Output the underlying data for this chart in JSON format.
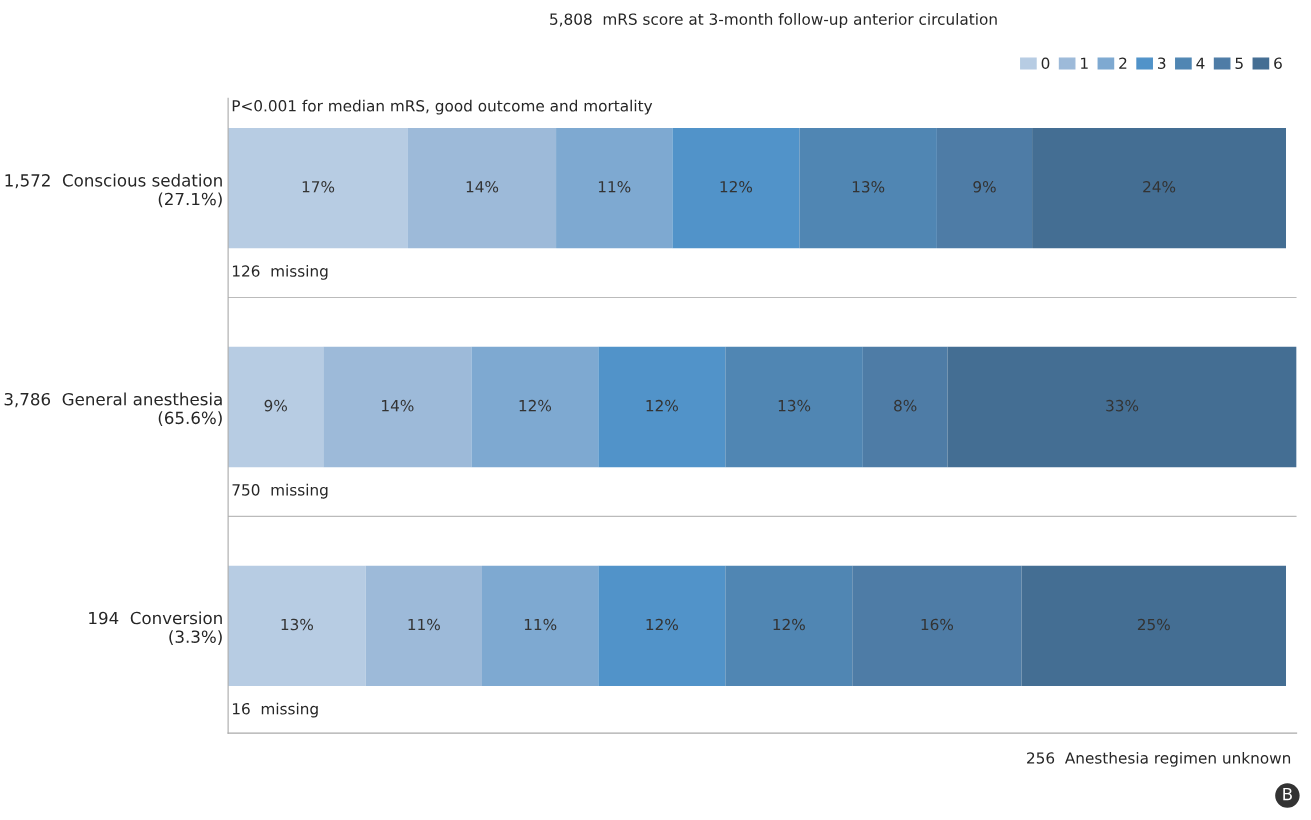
{
  "chart_data": {
    "type": "bar",
    "orientation": "horizontal",
    "stacked": true,
    "title": "5,808  mRS score at 3-month follow-up anterior circulation",
    "categories": [
      "1,572  Conscious sedation\n(27.1%)",
      "3,786  General anesthesia\n(65.6%)",
      "194  Conversion\n(3.3%)"
    ],
    "series": [
      {
        "name": "0",
        "color": "#b7cce3",
        "values": [
          17,
          9,
          13
        ],
        "value_labels": [
          "17%",
          "9%",
          "13%"
        ]
      },
      {
        "name": "1",
        "color": "#9dbad9",
        "values": [
          14,
          14,
          11
        ],
        "value_labels": [
          "14%",
          "14%",
          "11%"
        ]
      },
      {
        "name": "2",
        "color": "#7ea9d1",
        "values": [
          11,
          12,
          11
        ],
        "value_labels": [
          "11%",
          "12%",
          "11%"
        ]
      },
      {
        "name": "3",
        "color": "#5193c9",
        "values": [
          12,
          12,
          12
        ],
        "value_labels": [
          "12%",
          "12%",
          "12%"
        ]
      },
      {
        "name": "4",
        "color": "#5086b3",
        "values": [
          13,
          13,
          12
        ],
        "value_labels": [
          "13%",
          "13%",
          "12%"
        ]
      },
      {
        "name": "5",
        "color": "#4e7ca6",
        "values": [
          9,
          8,
          16
        ],
        "value_labels": [
          "9%",
          "8%",
          "16%"
        ]
      },
      {
        "name": "6",
        "color": "#446e93",
        "values": [
          24,
          33,
          25
        ],
        "value_labels": [
          "24%",
          "33%",
          "25%"
        ]
      }
    ],
    "tick_labels": "y",
    "legend": "top right",
    "grid": false,
    "annotations": [
      "P<0.001 for median mRS, good outcome and mortality",
      "126  missing",
      "750  missing",
      "16  missing",
      "256  Anesthesia regimen unknown",
      "B"
    ]
  }
}
